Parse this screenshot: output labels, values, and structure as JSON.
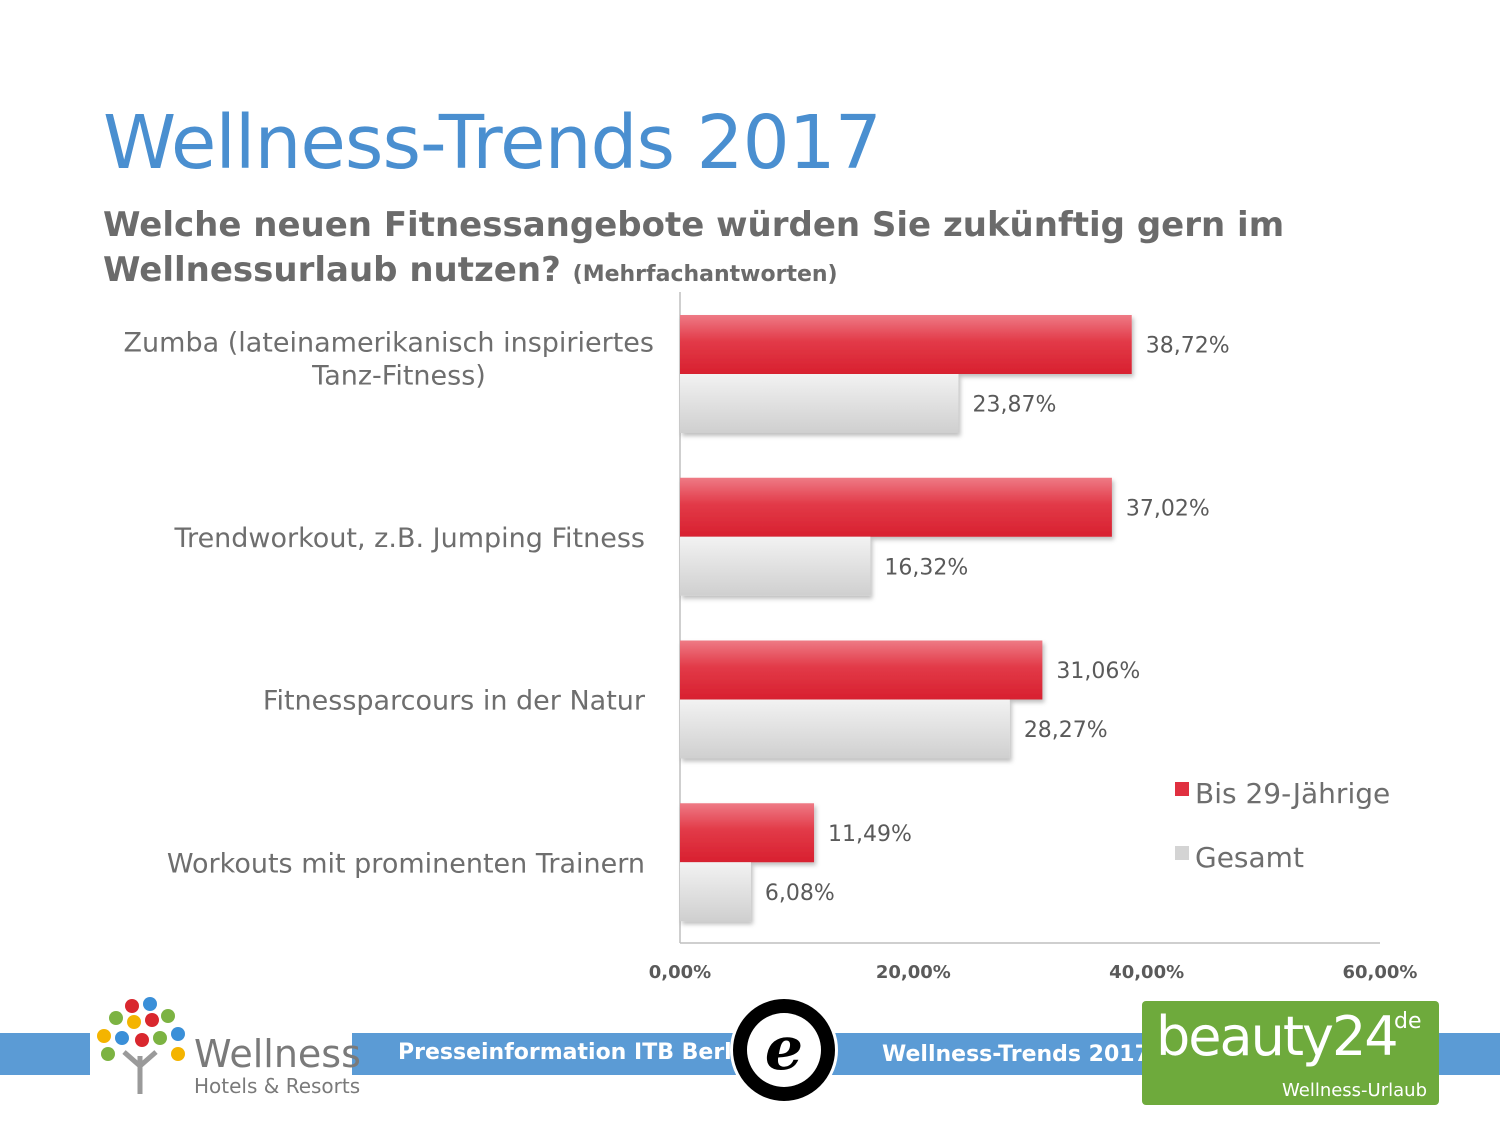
{
  "slide": {
    "title": "Wellness-Trends 2017",
    "question": "Welche neuen Fitnessangebote würden Sie zukünftig gern im Wellnessurlaub nutzen?",
    "note": "(Mehrfachantworten)"
  },
  "chart_data": {
    "type": "bar",
    "orientation": "horizontal",
    "categories": [
      "Zumba (lateinamerikanisch inspiriertes Tanz-Fitness)",
      "Trendworkout, z.B. Jumping Fitness",
      "Fitnessparcours in der Natur",
      "Workouts mit prominenten Trainern"
    ],
    "category_lines": [
      [
        "Zumba (lateinamerikanisch inspiriertes",
        "Tanz-Fitness)"
      ],
      [
        "Trendworkout, z.B. Jumping Fitness"
      ],
      [
        "Fitnessparcours in der Natur"
      ],
      [
        "Workouts mit prominenten Trainern"
      ]
    ],
    "series": [
      {
        "name": "Bis 29-Jährige",
        "color": "#e03040",
        "values": [
          38.72,
          37.02,
          31.06,
          11.49
        ],
        "labels": [
          "38,72%",
          "37,02%",
          "31,06%",
          "11,49%"
        ]
      },
      {
        "name": "Gesamt",
        "color": "#d9d9d9",
        "values": [
          23.87,
          16.32,
          28.27,
          6.08
        ],
        "labels": [
          "23,87%",
          "16,32%",
          "28,27%",
          "6,08%"
        ]
      }
    ],
    "xlim": [
      0,
      60
    ],
    "ticks": [
      0,
      20,
      40,
      60
    ],
    "tick_labels": [
      "0,00%",
      "20,00%",
      "40,00%",
      "60,00%"
    ],
    "legend_position": "right",
    "grid": false
  },
  "footer": {
    "left_text": "Presseinformation ITB Berlin",
    "right_text": "Wellness-Trends 2017",
    "wellness_logo_word": "Wellness",
    "wellness_logo_sub": "Hotels & Resorts",
    "e_logo": "e",
    "beauty_logo_word": "beauty24",
    "beauty_logo_de": "de",
    "beauty_logo_sub": "Wellness-Urlaub"
  }
}
